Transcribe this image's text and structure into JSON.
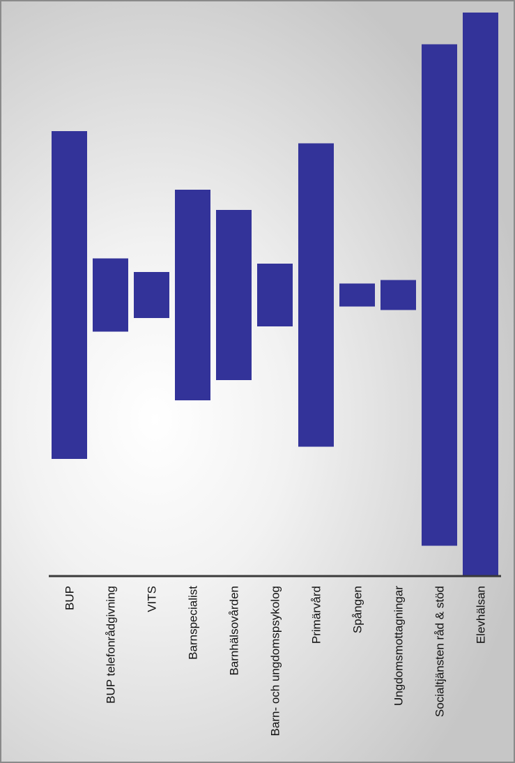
{
  "chart_data": {
    "type": "bar",
    "orientation": "centered-range",
    "categories": [
      "BUP",
      "BUP telefonrådgivning",
      "VITS",
      "Barnspecialist",
      "Barnhälsovården",
      "Barn- och ungdomspsykolog",
      "Primärvård",
      "Spången",
      "Ungdomsmottagningar",
      "Socialtjänsten råd & stöd",
      "Elevhälsan"
    ],
    "values": [
      470,
      105,
      66,
      302,
      244,
      90,
      435,
      33,
      43,
      719,
      808
    ],
    "xlabel": "",
    "ylabel": "",
    "title": "",
    "grid": false,
    "legend": "none",
    "colors": {
      "bar": "#333399",
      "axis": "#3a3a3a"
    }
  }
}
